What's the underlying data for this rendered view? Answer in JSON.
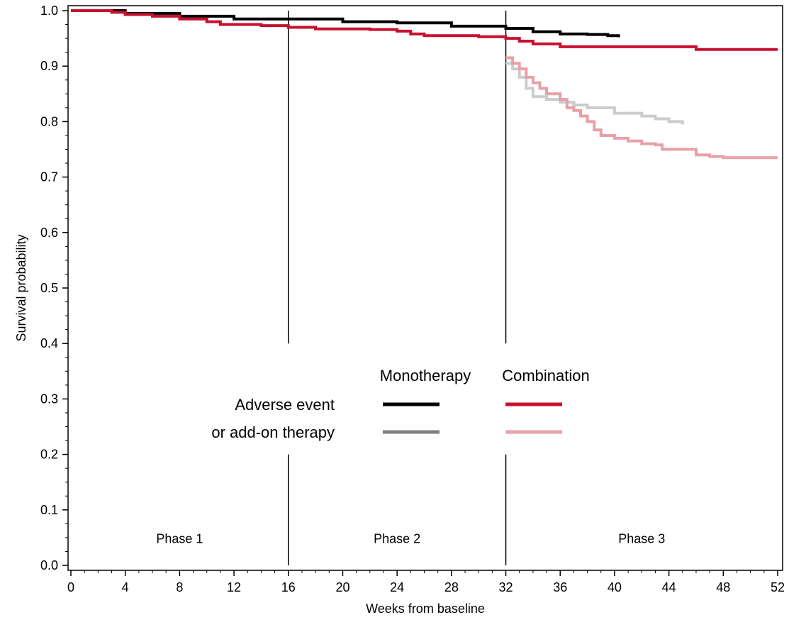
{
  "chart_data": {
    "type": "line",
    "xlabel": "Weeks from baseline",
    "ylabel": "Survival probability",
    "xlim": [
      0,
      52
    ],
    "ylim": [
      0,
      1.0
    ],
    "xticks": [
      "0",
      "4",
      "8",
      "12",
      "16",
      "20",
      "24",
      "28",
      "32",
      "36",
      "40",
      "44",
      "48",
      "52"
    ],
    "yticks": [
      "0.0",
      "0.1",
      "0.2",
      "0.3",
      "0.4",
      "0.5",
      "0.6",
      "0.7",
      "0.8",
      "0.9",
      "1.0"
    ],
    "phase_boundaries": [
      16,
      32
    ],
    "phases": [
      {
        "label": "Phase 1",
        "x": 8
      },
      {
        "label": "Phase 2",
        "x": 24
      },
      {
        "label": "Phase 3",
        "x": 42
      }
    ],
    "legend": {
      "col_headers": [
        "Monotherapy",
        "Combination"
      ],
      "row_labels": [
        "Adverse event",
        "or add-on therapy"
      ]
    },
    "series": [
      {
        "key": "mono_ae",
        "color": "#000000",
        "points": [
          [
            0,
            1.0
          ],
          [
            4,
            0.995
          ],
          [
            8,
            0.99
          ],
          [
            12,
            0.985
          ],
          [
            16,
            0.985
          ],
          [
            20,
            0.98
          ],
          [
            24,
            0.978
          ],
          [
            28,
            0.972
          ],
          [
            32,
            0.968
          ],
          [
            34,
            0.962
          ],
          [
            36,
            0.958
          ],
          [
            38,
            0.957
          ],
          [
            39.5,
            0.955
          ],
          [
            40.3,
            0.952
          ]
        ]
      },
      {
        "key": "combo_ae",
        "color": "#c8102e",
        "points": [
          [
            0,
            1.0
          ],
          [
            3,
            0.997
          ],
          [
            4,
            0.993
          ],
          [
            6,
            0.99
          ],
          [
            8,
            0.985
          ],
          [
            10,
            0.98
          ],
          [
            11,
            0.975
          ],
          [
            14,
            0.973
          ],
          [
            16,
            0.97
          ],
          [
            18,
            0.967
          ],
          [
            22,
            0.966
          ],
          [
            24,
            0.963
          ],
          [
            25,
            0.958
          ],
          [
            26,
            0.955
          ],
          [
            30,
            0.953
          ],
          [
            32,
            0.95
          ],
          [
            33,
            0.945
          ],
          [
            34,
            0.94
          ],
          [
            36,
            0.935
          ],
          [
            44,
            0.935
          ],
          [
            46,
            0.93
          ],
          [
            52,
            0.93
          ]
        ]
      },
      {
        "key": "mono_addon",
        "color": "#cccccc",
        "points": [
          [
            32,
            0.905
          ],
          [
            32.5,
            0.895
          ],
          [
            33,
            0.88
          ],
          [
            33.5,
            0.86
          ],
          [
            34,
            0.845
          ],
          [
            35,
            0.84
          ],
          [
            36,
            0.835
          ],
          [
            37,
            0.83
          ],
          [
            38,
            0.825
          ],
          [
            40,
            0.815
          ],
          [
            42,
            0.81
          ],
          [
            43,
            0.805
          ],
          [
            44,
            0.8
          ],
          [
            45,
            0.795
          ]
        ]
      },
      {
        "key": "combo_addon",
        "color": "#e8a0a8",
        "points": [
          [
            32,
            0.915
          ],
          [
            32.5,
            0.905
          ],
          [
            33,
            0.895
          ],
          [
            33.5,
            0.88
          ],
          [
            34,
            0.87
          ],
          [
            34.5,
            0.86
          ],
          [
            35,
            0.85
          ],
          [
            36,
            0.84
          ],
          [
            36.5,
            0.825
          ],
          [
            37,
            0.82
          ],
          [
            37.5,
            0.81
          ],
          [
            38,
            0.8
          ],
          [
            38.5,
            0.785
          ],
          [
            39,
            0.775
          ],
          [
            40,
            0.77
          ],
          [
            41,
            0.765
          ],
          [
            42,
            0.76
          ],
          [
            43,
            0.758
          ],
          [
            43.5,
            0.75
          ],
          [
            45,
            0.75
          ],
          [
            46,
            0.74
          ],
          [
            47,
            0.737
          ],
          [
            48,
            0.735
          ],
          [
            52,
            0.735
          ]
        ]
      }
    ]
  }
}
